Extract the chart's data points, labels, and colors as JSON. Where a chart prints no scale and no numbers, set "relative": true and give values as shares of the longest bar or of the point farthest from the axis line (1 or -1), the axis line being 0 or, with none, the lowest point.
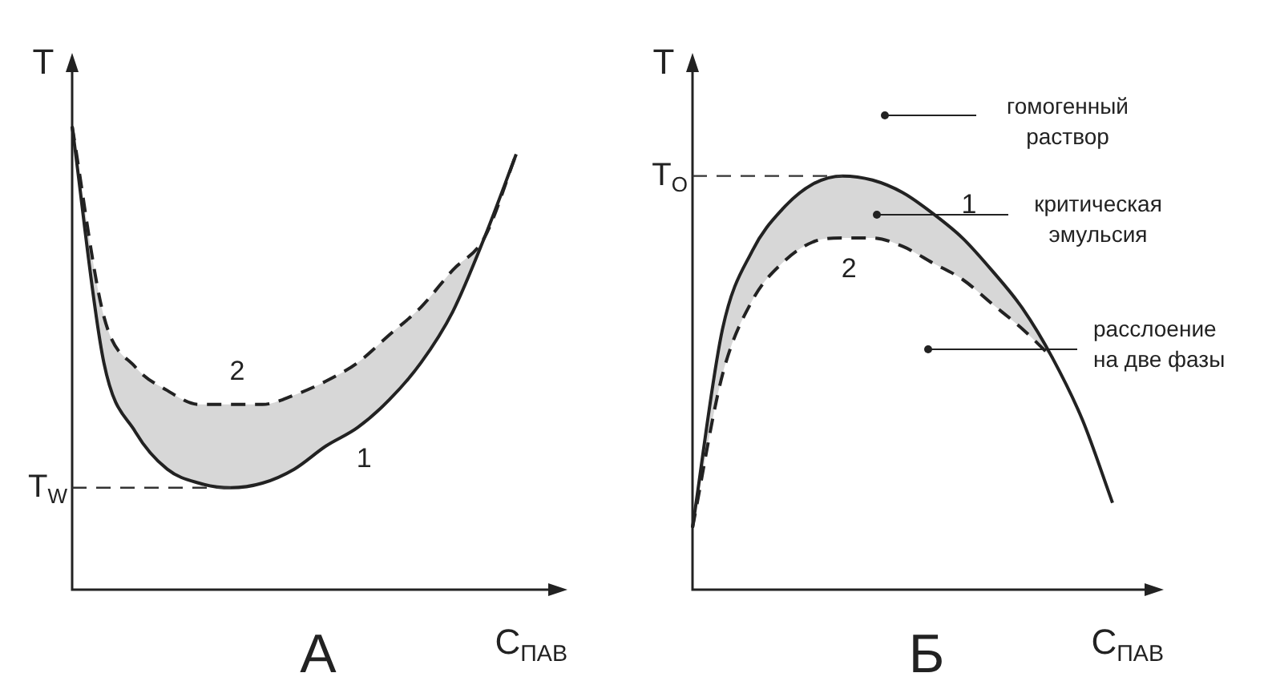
{
  "chart_data": [
    {
      "type": "line",
      "title": "А",
      "xlabel": "C$_{ПАВ}$",
      "ylabel": "T",
      "relative": true,
      "legend": false,
      "marker": "none",
      "categories": [
        null,
        null,
        null,
        null,
        null,
        null,
        null,
        null,
        null,
        null,
        null,
        null,
        null,
        null,
        null
      ],
      "ref_lines": [
        {
          "axis": "y",
          "value": 0.22,
          "label": "T$_{W}$",
          "line_style": "dashed",
          "color": "#333333"
        }
      ],
      "series": [
        {
          "name": "1",
          "color": "#222222",
          "line_style": "solid",
          "values": [
            1.0,
            0.49,
            0.34,
            0.26,
            0.23,
            0.22,
            0.23,
            0.26,
            0.31,
            0.35,
            0.41,
            0.49,
            0.6,
            0.76,
            0.94
          ]
        },
        {
          "name": "2",
          "color": "#222222",
          "line_style": "dashed",
          "values": [
            1.0,
            0.59,
            0.48,
            0.43,
            0.4,
            0.4,
            0.4,
            0.42,
            0.45,
            0.49,
            0.55,
            0.61,
            0.69,
            0.76,
            0.94
          ],
          "lower": [
            1.0,
            0.49,
            0.34,
            0.26,
            0.23,
            0.22,
            0.23,
            0.26,
            0.31,
            0.35,
            0.41,
            0.49,
            0.6,
            0.76,
            0.94
          ],
          "upper": [
            1.0,
            0.59,
            0.48,
            0.43,
            0.4,
            0.4,
            0.4,
            0.42,
            0.45,
            0.49,
            0.55,
            0.61,
            0.69,
            0.76,
            0.94
          ]
        }
      ]
    },
    {
      "type": "line",
      "title": "Б",
      "xlabel": "C$_{ПАВ}$",
      "ylabel": "T",
      "relative": true,
      "legend": false,
      "marker": "none",
      "categories": [
        null,
        null,
        null,
        null,
        null,
        null,
        null,
        null,
        null,
        null,
        null,
        null,
        null,
        null,
        null
      ],
      "ref_lines": [
        {
          "axis": "y",
          "value": 1.0,
          "label": "T$_{O}$",
          "line_style": "dashed",
          "color": "#333333"
        }
      ],
      "annotations": [
        "гомогенный раствор",
        "критическая эмульсия",
        "расслоение на две фазы"
      ],
      "series": [
        {
          "name": "1",
          "color": "#222222",
          "line_style": "solid",
          "values": [
            0.15,
            0.63,
            0.82,
            0.92,
            0.98,
            1.0,
            0.99,
            0.96,
            0.91,
            0.85,
            0.77,
            0.68,
            0.56,
            0.41,
            0.21
          ]
        },
        {
          "name": "2",
          "color": "#222222",
          "line_style": "dashed",
          "values": [
            0.15,
            0.52,
            0.7,
            0.79,
            0.84,
            0.85,
            0.85,
            0.83,
            0.79,
            0.75,
            0.69,
            0.63,
            0.56,
            null,
            null
          ],
          "lower": [
            0.15,
            0.52,
            0.7,
            0.79,
            0.84,
            0.85,
            0.85,
            0.83,
            0.79,
            0.75,
            0.69,
            0.63,
            0.56,
            null,
            null
          ],
          "upper": [
            0.15,
            0.63,
            0.82,
            0.92,
            0.98,
            1.0,
            0.99,
            0.96,
            0.91,
            0.85,
            0.77,
            0.68,
            0.56,
            null,
            null
          ]
        }
      ]
    }
  ]
}
